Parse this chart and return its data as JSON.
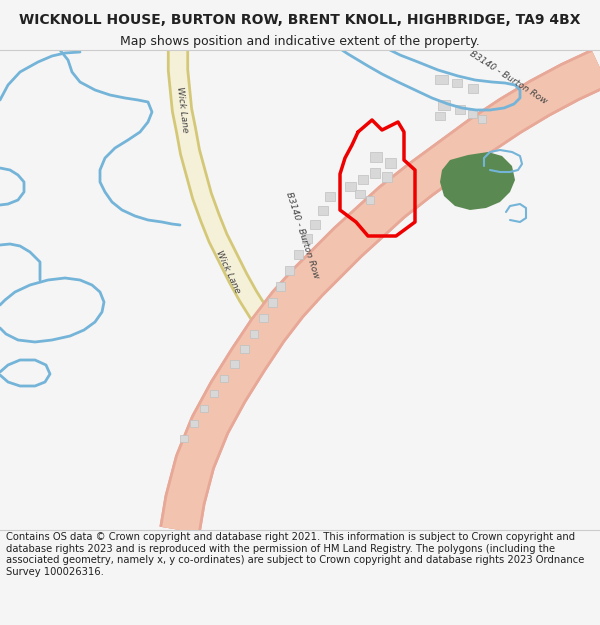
{
  "title": "WICKNOLL HOUSE, BURTON ROW, BRENT KNOLL, HIGHBRIDGE, TA9 4BX",
  "subtitle": "Map shows position and indicative extent of the property.",
  "footer": "Contains OS data © Crown copyright and database right 2021. This information is subject to Crown copyright and database rights 2023 and is reproduced with the permission of HM Land Registry. The polygons (including the associated geometry, namely x, y co-ordinates) are subject to Crown copyright and database rights 2023 Ordnance Survey 100026316.",
  "bg_color": "#f5f5f5",
  "map_bg": "#ffffff",
  "road_b3140_fill": "#f2c4b0",
  "road_b3140_edge": "#e8a898",
  "road_wick_fill": "#f5f0d8",
  "road_wick_edge": "#d4c878",
  "blue_color": "#74b4d8",
  "green_color": "#5a8a52",
  "plot_color": "#ee0000",
  "building_fill": "#d8d8d8",
  "building_edge": "#c0c0c0",
  "text_color": "#222222",
  "label_color": "#444444",
  "title_fontsize": 10,
  "subtitle_fontsize": 9,
  "footer_fontsize": 7.2,
  "road_label_fontsize": 6.5
}
